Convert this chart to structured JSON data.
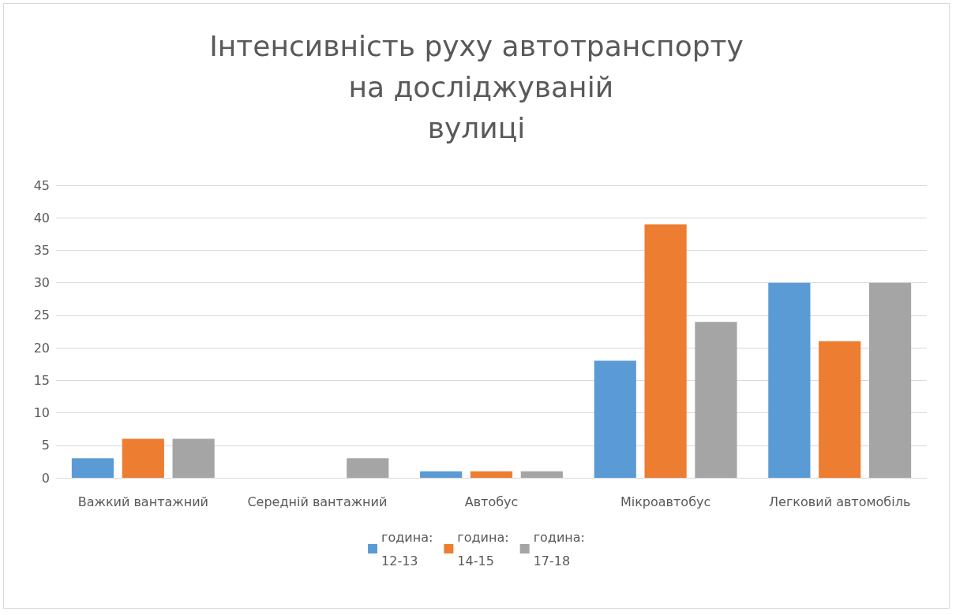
{
  "chart_data": {
    "type": "bar",
    "title": "Інтенсивність руху автотранспорту на досліджуваній\nвулиці",
    "categories": [
      "Важкий вантажний",
      "Середній вантажний",
      "Автобус",
      "Мікроавтобус",
      "Легковий автомобіль"
    ],
    "series": [
      {
        "name": "година: 12-13",
        "color": "#5b9bd5",
        "values": [
          3,
          0,
          1,
          18,
          30
        ]
      },
      {
        "name": "година: 14-15",
        "color": "#ed7d31",
        "values": [
          6,
          0,
          1,
          39,
          21
        ]
      },
      {
        "name": "година: 17-18",
        "color": "#a5a5a5",
        "values": [
          6,
          3,
          1,
          24,
          30
        ]
      }
    ],
    "ylim": [
      0,
      45
    ],
    "yticks": [
      0,
      5,
      10,
      15,
      20,
      25,
      30,
      35,
      40,
      45
    ],
    "grid": "y",
    "legend": "bottom"
  }
}
